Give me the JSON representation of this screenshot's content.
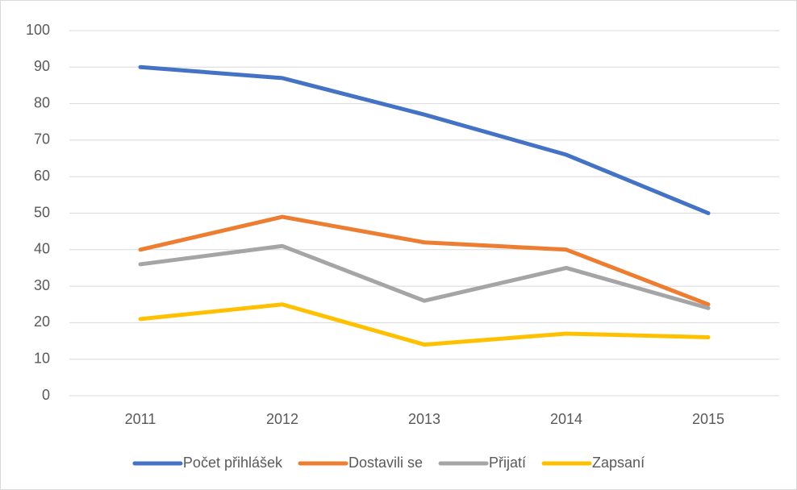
{
  "chart_data": {
    "type": "line",
    "categories": [
      "2011",
      "2012",
      "2013",
      "2014",
      "2015"
    ],
    "series": [
      {
        "name": "Počet přihlášek",
        "color": "#4472c4",
        "values": [
          90,
          87,
          77,
          66,
          50
        ]
      },
      {
        "name": "Dostavili se",
        "color": "#ed7d31",
        "values": [
          40,
          49,
          42,
          40,
          25
        ]
      },
      {
        "name": "Přijatí",
        "color": "#a5a5a5",
        "values": [
          36,
          41,
          26,
          35,
          24
        ]
      },
      {
        "name": "Zapsaní",
        "color": "#ffc000",
        "values": [
          21,
          25,
          14,
          17,
          16
        ]
      }
    ],
    "ylim": [
      0,
      100
    ],
    "yticks": [
      0,
      10,
      20,
      30,
      40,
      50,
      60,
      70,
      80,
      90,
      100
    ],
    "grid": true,
    "legend": "bottom"
  }
}
